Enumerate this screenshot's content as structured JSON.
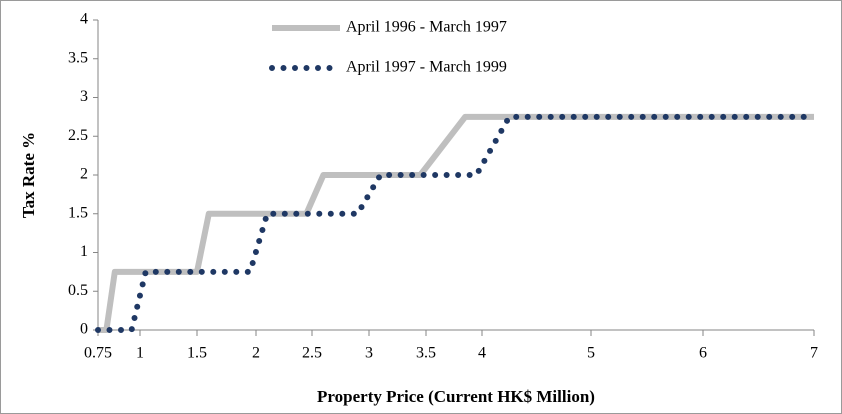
{
  "chart_data": {
    "type": "line",
    "y_label": "Tax Rate %",
    "x_label": "Property Price (Current HK$ Million)",
    "xlim": [
      0.75,
      7
    ],
    "xticks": [
      0.75,
      1,
      1.5,
      2,
      2.5,
      3,
      3.5,
      4,
      5,
      6,
      7
    ],
    "ylim": [
      0,
      4
    ],
    "yticks": [
      0,
      0.5,
      1,
      1.5,
      2,
      2.5,
      3,
      3.5,
      4
    ],
    "legend": "top",
    "series": [
      {
        "name": "April 1996 - March 1997",
        "color": "#bfbfbf",
        "style": "solid",
        "x": [
          0.75,
          0.8,
          0.85,
          1.5,
          1.6,
          2.45,
          2.6,
          3.45,
          3.85,
          7
        ],
        "values": [
          0,
          0,
          0.75,
          0.75,
          1.5,
          1.5,
          2,
          2,
          2.75,
          2.75
        ]
      },
      {
        "name": "April 1997 - March 1999",
        "color": "#1f3864",
        "style": "dotted",
        "x": [
          0.75,
          0.95,
          1.05,
          1.95,
          2.1,
          2.9,
          3.1,
          3.95,
          4.25,
          7
        ],
        "values": [
          0,
          0,
          0.75,
          0.75,
          1.5,
          1.5,
          2,
          2,
          2.75,
          2.75
        ]
      }
    ]
  }
}
